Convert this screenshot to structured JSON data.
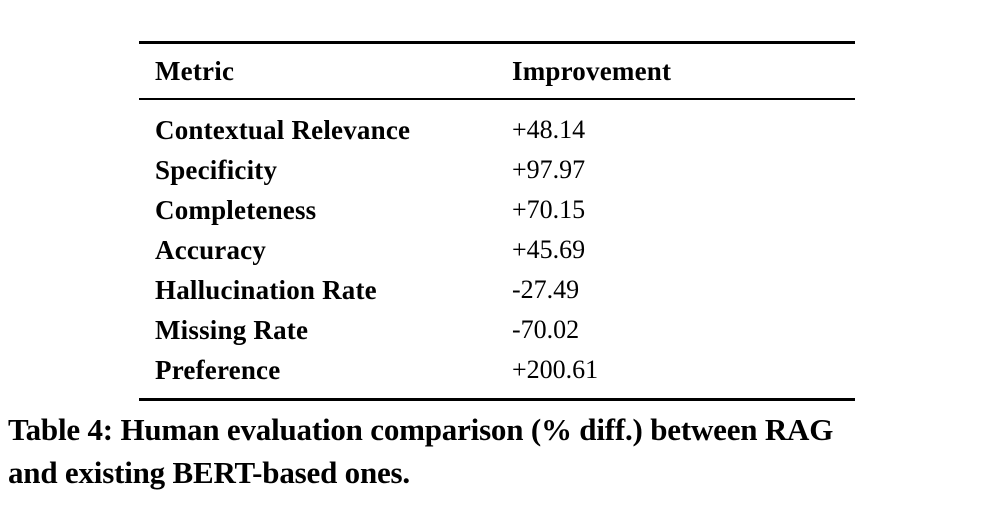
{
  "table": {
    "columns": [
      "Metric",
      "Improvement"
    ],
    "rows": [
      {
        "metric": "Contextual Relevance",
        "improvement": "+48.14"
      },
      {
        "metric": "Specificity",
        "improvement": "+97.97"
      },
      {
        "metric": "Completeness",
        "improvement": "+70.15"
      },
      {
        "metric": "Accuracy",
        "improvement": "+45.69"
      },
      {
        "metric": "Hallucination Rate",
        "improvement": "-27.49"
      },
      {
        "metric": "Missing Rate",
        "improvement": "-70.02"
      },
      {
        "metric": "Preference",
        "improvement": "+200.61"
      }
    ]
  },
  "caption": {
    "full": "Table 4: Human evaluation comparison (% diff.) between RAG and existing BERT-based ones.",
    "lines": [
      "Table 4: Human evaluation comparison (% diff.) between RAG",
      "and existing BERT-based ones."
    ]
  },
  "colors": {
    "text": "#000000",
    "background": "#ffffff",
    "rule": "#000000"
  }
}
